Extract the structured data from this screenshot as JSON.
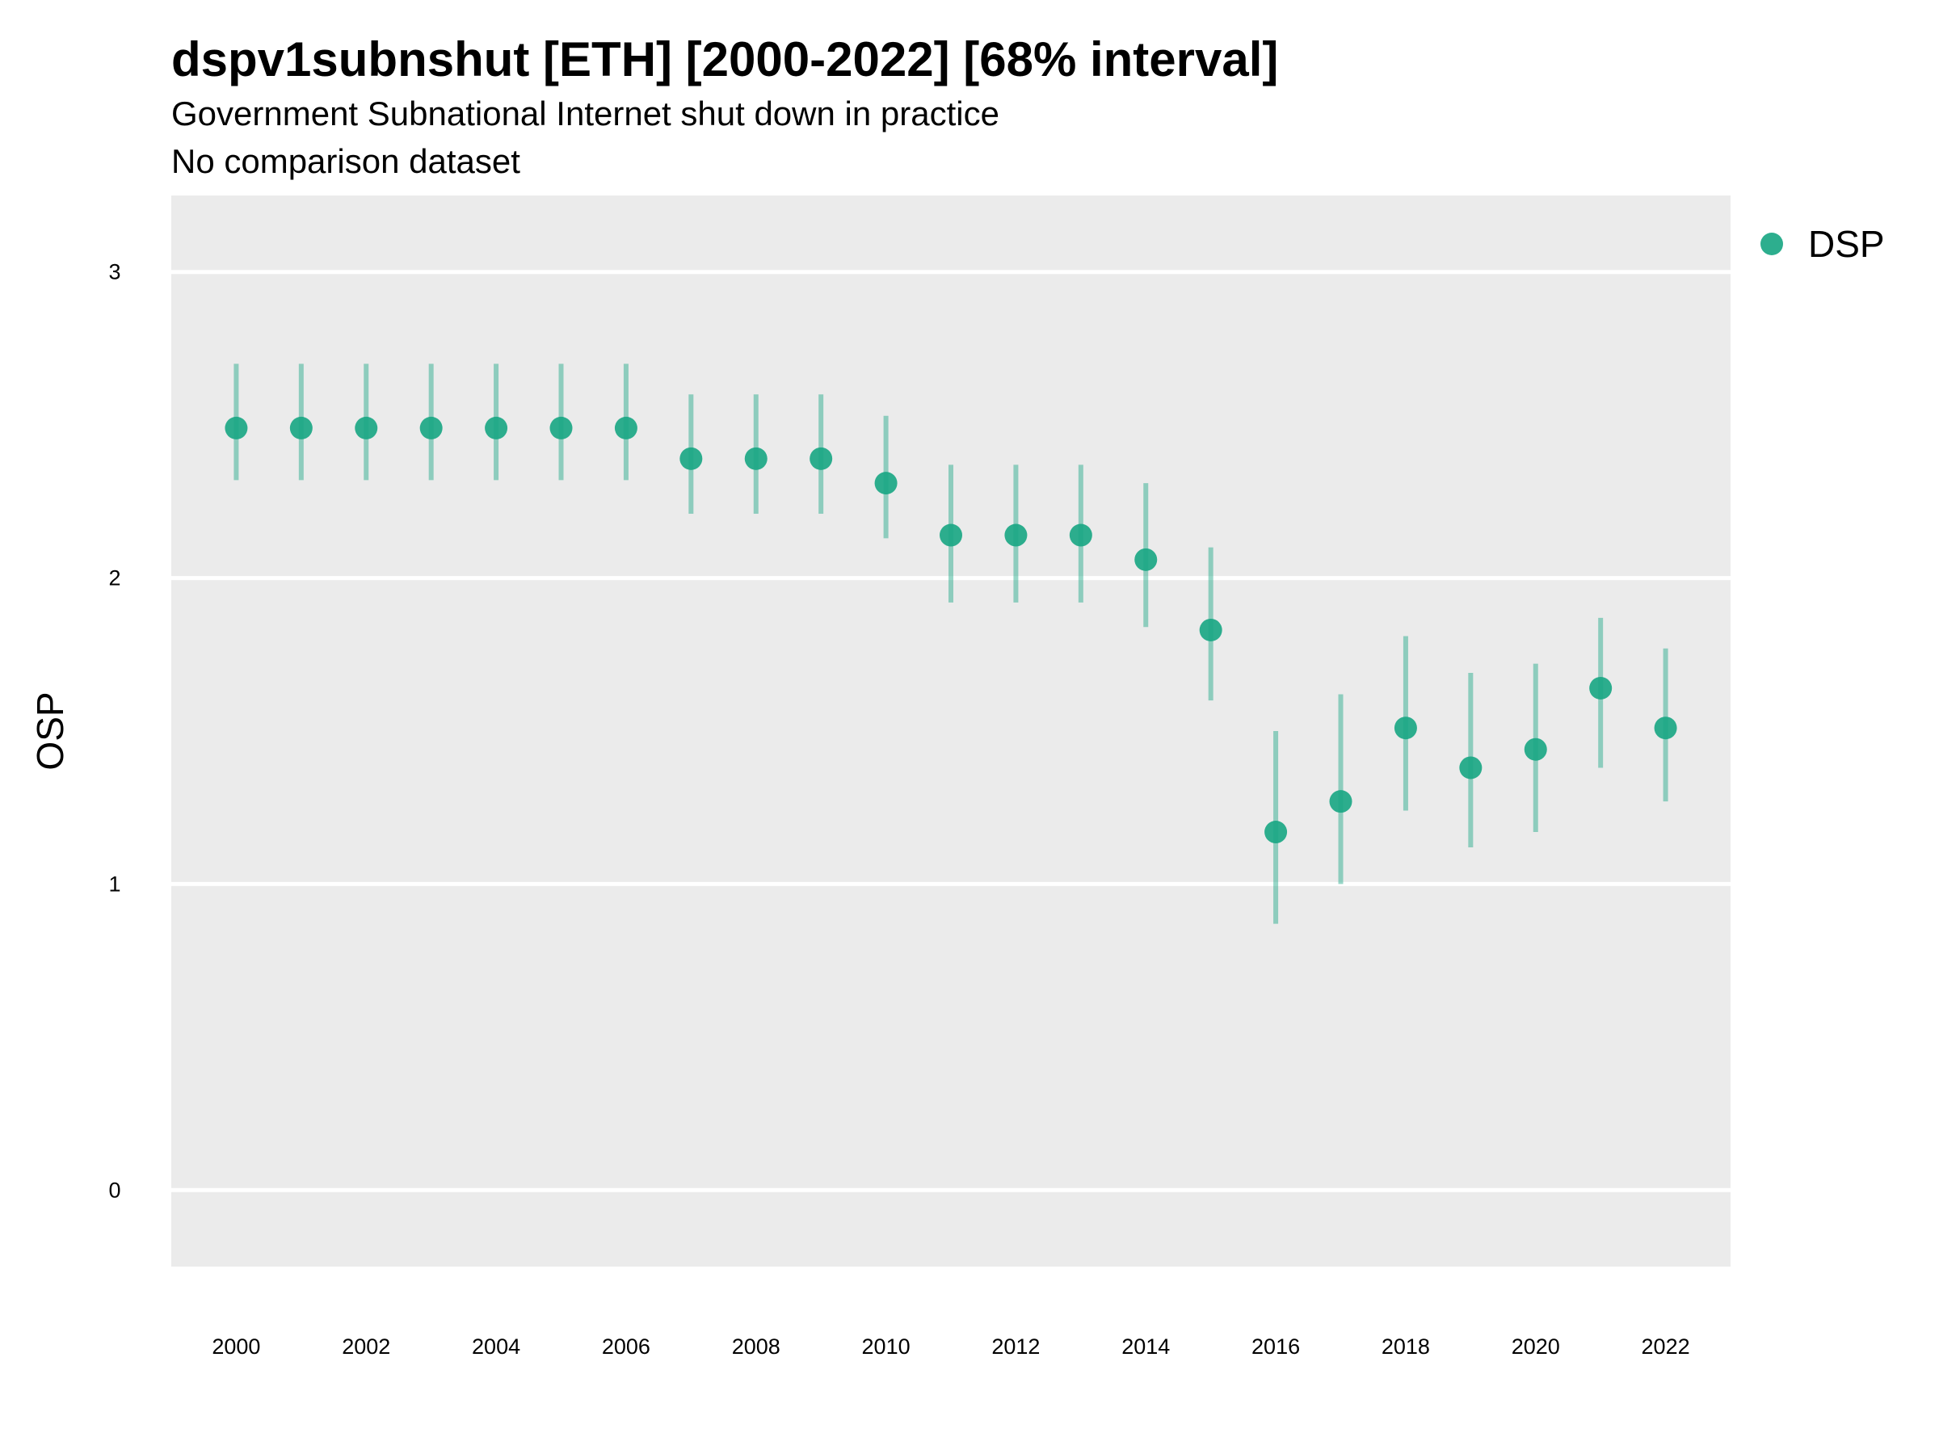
{
  "chart_data": {
    "type": "scatter",
    "title": "dspv1subnshut [ETH] [2000-2022] [68% interval]",
    "subtitle_lines": [
      "Government Subnational Internet shut down in practice",
      "No comparison dataset"
    ],
    "ylabel": "OSP",
    "xlabel": "",
    "xlim": [
      1999.0,
      2023.0
    ],
    "ylim": [
      -0.25,
      3.25
    ],
    "y_ticks": [
      0,
      1,
      2,
      3
    ],
    "x_ticks": [
      2000,
      2002,
      2004,
      2006,
      2008,
      2010,
      2012,
      2014,
      2016,
      2018,
      2020,
      2022
    ],
    "grid": "horizontal",
    "legend_position": "right",
    "series": [
      {
        "name": "DSP",
        "color": "#1ba784",
        "x": [
          2000,
          2001,
          2002,
          2003,
          2004,
          2005,
          2006,
          2007,
          2008,
          2009,
          2010,
          2011,
          2012,
          2013,
          2014,
          2015,
          2016,
          2017,
          2018,
          2019,
          2020,
          2021,
          2022
        ],
        "y": [
          2.49,
          2.49,
          2.49,
          2.49,
          2.49,
          2.49,
          2.49,
          2.39,
          2.39,
          2.39,
          2.31,
          2.14,
          2.14,
          2.14,
          2.06,
          1.83,
          1.17,
          1.27,
          1.51,
          1.38,
          1.44,
          1.64,
          1.51
        ],
        "lower": [
          2.32,
          2.32,
          2.32,
          2.32,
          2.32,
          2.32,
          2.32,
          2.21,
          2.21,
          2.21,
          2.13,
          1.92,
          1.92,
          1.92,
          1.84,
          1.6,
          0.87,
          1.0,
          1.24,
          1.12,
          1.17,
          1.38,
          1.27
        ],
        "upper": [
          2.7,
          2.7,
          2.7,
          2.7,
          2.7,
          2.7,
          2.7,
          2.6,
          2.6,
          2.6,
          2.53,
          2.37,
          2.37,
          2.37,
          2.31,
          2.1,
          1.5,
          1.62,
          1.81,
          1.69,
          1.72,
          1.87,
          1.77
        ]
      }
    ]
  }
}
